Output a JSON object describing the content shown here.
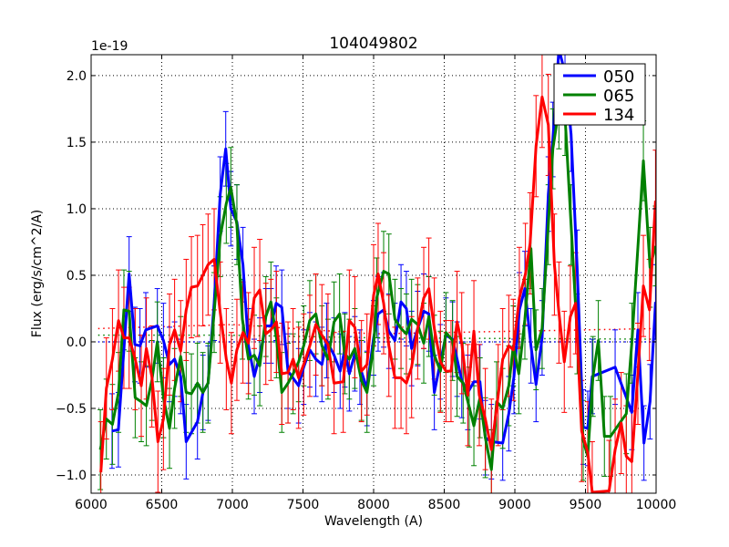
{
  "chart_data": {
    "type": "line",
    "title": "104049802",
    "xlabel": "Wavelength (A)",
    "ylabel": "Flux (erg/s/cm^2/A)",
    "y_offset_label": "1e-19",
    "xlim": [
      6000,
      10000
    ],
    "ylim": [
      -1.137,
      2.157
    ],
    "xticks": [
      6000,
      6500,
      7000,
      7500,
      8000,
      8500,
      9000,
      9500,
      10000
    ],
    "xtick_labels": [
      "6000",
      "6500",
      "7000",
      "7500",
      "8000",
      "8500",
      "9000",
      "9500",
      "10000"
    ],
    "yticks": [
      -1.0,
      -0.5,
      0.0,
      0.5,
      1.0,
      1.5,
      2.0
    ],
    "ytick_labels": [
      "−1.0",
      "−0.5",
      "0.0",
      "0.5",
      "1.0",
      "1.5",
      "2.0"
    ],
    "grid": true,
    "legend_position": "top-right",
    "series": [
      {
        "name": "050",
        "color": "#0000ff",
        "yerr": 0.28,
        "continuum": [
          [
            6050,
            0.0
          ],
          [
            10000,
            0.0
          ]
        ],
        "x": [
          6148,
          6193,
          6269,
          6310,
          6346,
          6387,
          6469,
          6512,
          6555,
          6591,
          6634,
          6673,
          6753,
          6792,
          6828,
          6871,
          6914,
          6953,
          6989,
          7032,
          7075,
          7114,
          7155,
          7194,
          7237,
          7274,
          7310,
          7350,
          7394,
          7469,
          7505,
          7548,
          7591,
          7634,
          7667,
          7720,
          7763,
          7796,
          7828,
          7867,
          7903,
          7953,
          8000,
          8032,
          8071,
          8108,
          8151,
          8194,
          8232,
          8269,
          8312,
          8355,
          8391,
          8430,
          8473,
          8512,
          8559,
          8591,
          8624,
          8667,
          8710,
          8753,
          8791,
          8834,
          8914,
          8957,
          8994,
          9032,
          9071,
          9114,
          9150,
          9193,
          9237,
          9269,
          9312,
          9355,
          9398,
          9441,
          9484,
          9516,
          9548,
          9710,
          9828,
          9871,
          9914,
          9957,
          9996
        ],
        "y": [
          -0.67,
          -0.66,
          0.51,
          -0.02,
          -0.03,
          0.09,
          0.12,
          0.01,
          -0.17,
          -0.13,
          -0.26,
          -0.75,
          -0.6,
          -0.38,
          -0.31,
          0.29,
          1.11,
          1.45,
          1.0,
          0.9,
          0.58,
          -0.03,
          -0.26,
          -0.1,
          0.12,
          0.12,
          0.29,
          0.26,
          -0.22,
          -0.33,
          -0.19,
          -0.06,
          -0.13,
          -0.17,
          0.01,
          -0.1,
          -0.22,
          -0.06,
          -0.24,
          -0.09,
          -0.19,
          -0.35,
          0.03,
          0.21,
          0.24,
          0.08,
          0.01,
          0.3,
          0.25,
          -0.05,
          0.1,
          0.23,
          0.21,
          -0.38,
          -0.15,
          0.05,
          0.02,
          -0.13,
          -0.29,
          -0.38,
          -0.3,
          -0.3,
          -0.72,
          -0.75,
          -0.76,
          -0.54,
          -0.26,
          0.24,
          0.4,
          -0.03,
          -0.32,
          0.03,
          1.11,
          1.52,
          2.2,
          2.02,
          1.56,
          0.56,
          -0.64,
          -0.65,
          -0.26,
          -0.19,
          -0.53,
          0.09,
          -0.76,
          -0.45,
          0.3
        ]
      },
      {
        "name": "065",
        "color": "#008000",
        "yerr": 0.3,
        "continuum": [
          [
            6050,
            0.05
          ],
          [
            7000,
            0.05
          ],
          [
            8000,
            0.03
          ],
          [
            10000,
            0.02
          ]
        ],
        "x": [
          6065,
          6108,
          6151,
          6194,
          6232,
          6269,
          6312,
          6355,
          6391,
          6430,
          6469,
          6512,
          6555,
          6591,
          6634,
          6673,
          6710,
          6753,
          6791,
          6828,
          6871,
          6914,
          6957,
          6989,
          7032,
          7071,
          7114,
          7155,
          7194,
          7237,
          7273,
          7312,
          7350,
          7394,
          7430,
          7469,
          7505,
          7548,
          7591,
          7634,
          7677,
          7720,
          7759,
          7796,
          7828,
          7867,
          7914,
          7953,
          8000,
          8022,
          8071,
          8108,
          8151,
          8194,
          8232,
          8269,
          8312,
          8355,
          8391,
          8430,
          8473,
          8512,
          8559,
          8591,
          8634,
          8677,
          8710,
          8753,
          8791,
          8834,
          8871,
          8914,
          8957,
          8989,
          9028,
          9071,
          9114,
          9150,
          9193,
          9237,
          9269,
          9312,
          9355,
          9398,
          9441,
          9484,
          9516,
          9553,
          9591,
          9634,
          9677,
          9789,
          9828,
          9910,
          9957,
          9996
        ],
        "y": [
          -0.81,
          -0.58,
          -0.62,
          -0.38,
          0.24,
          0.23,
          -0.42,
          -0.45,
          -0.48,
          -0.29,
          0.0,
          -0.42,
          -0.65,
          -0.35,
          -0.11,
          -0.38,
          -0.39,
          -0.31,
          -0.38,
          -0.31,
          0.22,
          0.79,
          1.04,
          1.16,
          0.88,
          0.17,
          -0.13,
          -0.1,
          -0.18,
          0.19,
          0.3,
          0.03,
          -0.38,
          -0.31,
          -0.24,
          -0.15,
          -0.03,
          0.16,
          0.21,
          -0.03,
          -0.13,
          0.15,
          0.21,
          -0.09,
          -0.13,
          -0.05,
          -0.29,
          -0.38,
          -0.03,
          0.33,
          0.53,
          0.51,
          0.17,
          0.1,
          0.06,
          0.17,
          0.13,
          -0.01,
          0.19,
          -0.1,
          -0.22,
          0.07,
          0.01,
          -0.26,
          -0.31,
          -0.49,
          -0.63,
          -0.42,
          -0.72,
          -0.96,
          -0.45,
          -0.5,
          -0.33,
          -0.03,
          -0.24,
          0.17,
          0.7,
          -0.06,
          0.1,
          0.88,
          1.45,
          1.75,
          1.7,
          0.88,
          0.06,
          -0.74,
          -0.86,
          -0.26,
          0.01,
          -0.71,
          -0.71,
          -0.54,
          -0.01,
          1.36,
          0.56,
          0.72
        ]
      },
      {
        "name": "134",
        "color": "#ff0000",
        "yerr": 0.38,
        "continuum": [
          [
            6050,
            0.1
          ],
          [
            7000,
            0.13
          ],
          [
            8000,
            0.06
          ],
          [
            9000,
            0.08
          ],
          [
            10000,
            0.1
          ]
        ],
        "x": [
          6069,
          6108,
          6151,
          6194,
          6232,
          6269,
          6312,
          6355,
          6391,
          6430,
          6473,
          6512,
          6555,
          6591,
          6634,
          6673,
          6710,
          6753,
          6791,
          6828,
          6871,
          6914,
          6957,
          6993,
          7032,
          7075,
          7114,
          7155,
          7194,
          7237,
          7273,
          7312,
          7350,
          7394,
          7430,
          7469,
          7505,
          7548,
          7591,
          7634,
          7677,
          7720,
          7785,
          7828,
          7867,
          7914,
          7953,
          8000,
          8032,
          8071,
          8108,
          8151,
          8194,
          8232,
          8269,
          8312,
          8355,
          8391,
          8430,
          8473,
          8512,
          8548,
          8591,
          8624,
          8667,
          8710,
          8748,
          8791,
          8834,
          8882,
          8914,
          8957,
          8989,
          9032,
          9075,
          9108,
          9150,
          9193,
          9237,
          9280,
          9312,
          9350,
          9393,
          9430,
          9473,
          9516,
          9548,
          9667,
          9710,
          9753,
          9789,
          9828,
          9871,
          9910,
          9953,
          9996
        ],
        "y": [
          -0.98,
          -0.35,
          -0.13,
          0.16,
          0.03,
          0.03,
          -0.13,
          -0.33,
          -0.05,
          -0.26,
          -0.75,
          -0.58,
          -0.02,
          0.09,
          -0.07,
          0.24,
          0.41,
          0.42,
          0.5,
          0.58,
          0.62,
          0.22,
          -0.13,
          -0.31,
          -0.06,
          0.07,
          -0.01,
          0.33,
          0.39,
          0.06,
          0.09,
          0.15,
          -0.24,
          -0.23,
          -0.13,
          -0.27,
          -0.17,
          -0.03,
          0.13,
          0.05,
          -0.02,
          -0.31,
          -0.3,
          0.16,
          0.11,
          -0.22,
          -0.17,
          0.35,
          0.51,
          0.29,
          -0.03,
          -0.27,
          -0.27,
          -0.31,
          -0.19,
          0.1,
          0.33,
          0.4,
          0.1,
          -0.15,
          -0.22,
          -0.22,
          0.15,
          -0.01,
          -0.4,
          0.08,
          -0.4,
          -0.58,
          -0.81,
          -0.4,
          -0.13,
          -0.03,
          -0.06,
          0.33,
          0.51,
          0.74,
          1.47,
          1.84,
          1.63,
          0.58,
          0.22,
          -0.15,
          0.19,
          0.29,
          -0.67,
          -0.83,
          -1.13,
          -1.12,
          -0.81,
          -0.61,
          -0.86,
          -0.9,
          -0.24,
          0.42,
          0.24,
          1.06
        ]
      }
    ]
  }
}
